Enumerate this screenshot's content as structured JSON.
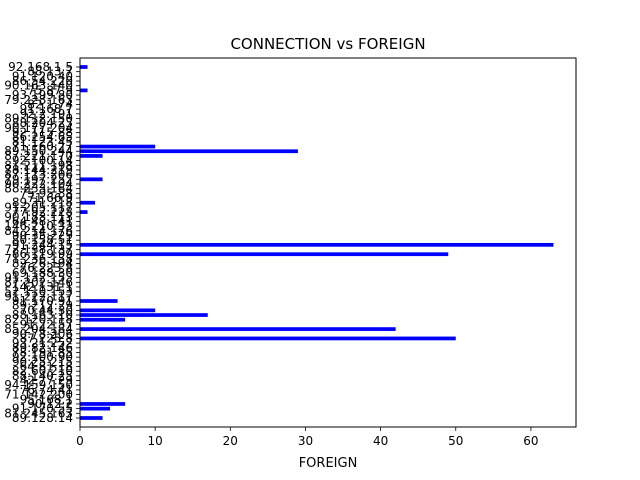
{
  "chart_data": {
    "type": "bar",
    "orientation": "horizontal",
    "title": "CONNECTION vs FOREIGN",
    "xlabel": "FOREIGN",
    "ylabel": "",
    "xlim": [
      0,
      66
    ],
    "xticks": [
      0,
      10,
      20,
      30,
      40,
      50,
      60
    ],
    "grid": false,
    "legend": "none",
    "bar_color": "#0000ff",
    "categories": [
      "89.128.14",
      "81.245.163",
      "91.170.55",
      "90.12.2",
      "95.168.1",
      "71.142.200",
      "76.74.41",
      "94.159.150",
      "42.77.29",
      "88.140.25",
      "82.60.210",
      "64.81.18",
      "90.25.215",
      "92.100.90",
      "78.191.85",
      "89.82.146",
      "93.21.252",
      "87.225.8",
      "90.78.206",
      "85.204.184",
      "91.22.57",
      "82.120.118",
      "88.163.10",
      "70.44.30",
      "89.212.29",
      "91.170.91",
      "91.222.117",
      "52.110.153",
      "142.131.1",
      "87.202.146",
      "91.132.153",
      "69.188.30",
      "76.223.8",
      "82.26.194",
      "71.236.158",
      "86.119.99",
      "72.138.137",
      "91.244.15",
      "80.158.51",
      "90.35.229",
      "84.214.176",
      "146.210.33",
      "64.48.141",
      "90.183.113",
      "77.92.228",
      "91.205.117",
      "89.31.218",
      "71.66.9",
      "75.95.88",
      "88.233.164",
      "90.222.104",
      "79.197.252",
      "87.113.206",
      "78.144.219",
      "81.211.198",
      "92.100.14",
      "87.221.170",
      "89.150.244",
      "71.160.27",
      "81.123.45",
      "86.254.65",
      "92.115.88",
      "90.177.204",
      "88.204.23",
      "89.112.150",
      "92.2.191",
      "91.168.7",
      "82.1.74",
      "79.228.163",
      "93.199.80",
      "75.87.9",
      "90.163.140",
      "86.54.220",
      "91.120.40",
      "88.13.7",
      "92.168.1.5"
    ],
    "values": [
      3,
      0,
      4,
      6,
      0,
      0,
      0,
      0,
      0,
      0,
      0,
      0,
      0,
      0,
      0,
      0,
      0,
      50,
      0,
      42,
      0,
      6,
      17,
      10,
      0,
      5,
      0,
      0,
      0,
      0,
      0,
      0,
      0,
      0,
      0,
      49,
      0,
      63,
      0,
      0,
      0,
      0,
      0,
      0,
      1,
      0,
      2,
      0,
      0,
      0,
      0,
      3,
      0,
      0,
      0,
      0,
      3,
      29,
      10,
      0,
      0,
      0,
      0,
      0,
      0,
      0,
      0,
      0,
      0,
      0,
      1,
      0,
      0,
      0,
      0,
      1
    ]
  }
}
